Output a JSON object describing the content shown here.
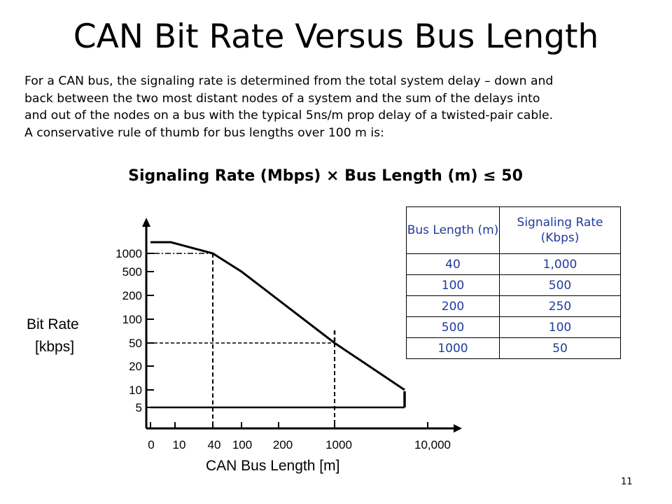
{
  "title": "CAN Bit Rate Versus Bus Length",
  "intro": [
    "For a CAN bus, the signaling rate is determined from the total system delay – down and",
    "back between the two most distant nodes of a system and the sum of the delays into",
    "and out of the nodes on a bus with the typical 5ns/m prop delay of a twisted-pair cable.",
    "A conservative rule of thumb for bus lengths over 100 m is:"
  ],
  "formula": "Signaling Rate (Mbps) × Bus Length (m) ≤ 50",
  "table": {
    "headers": [
      "Bus Length (m)",
      "Signaling Rate (Kbps)"
    ],
    "rows": [
      [
        "40",
        "1,000"
      ],
      [
        "100",
        "500"
      ],
      [
        "200",
        "250"
      ],
      [
        "500",
        "100"
      ],
      [
        "1000",
        "50"
      ]
    ],
    "text_color": "#1f3b9a"
  },
  "chart_data": {
    "type": "line",
    "ylabel": [
      "Bit Rate",
      "[kbps]"
    ],
    "xlabel": "CAN Bus Length [m]",
    "x_ticks": [
      "0",
      "10",
      "40",
      "100",
      "200",
      "1000",
      "10,000"
    ],
    "y_ticks": [
      "5",
      "10",
      "20",
      "50",
      "100",
      "200",
      "500",
      "1000"
    ],
    "upper_curve": {
      "x": [
        0,
        40,
        100,
        1000,
        7000
      ],
      "y": [
        1000,
        1000,
        500,
        50,
        10
      ]
    },
    "lower_limit": {
      "x": [
        0,
        7000
      ],
      "y": [
        5,
        5
      ]
    },
    "reference_lines": [
      {
        "x": 40,
        "y": 1000
      },
      {
        "x": 1000,
        "y": 50
      }
    ]
  },
  "slide_number": "11"
}
